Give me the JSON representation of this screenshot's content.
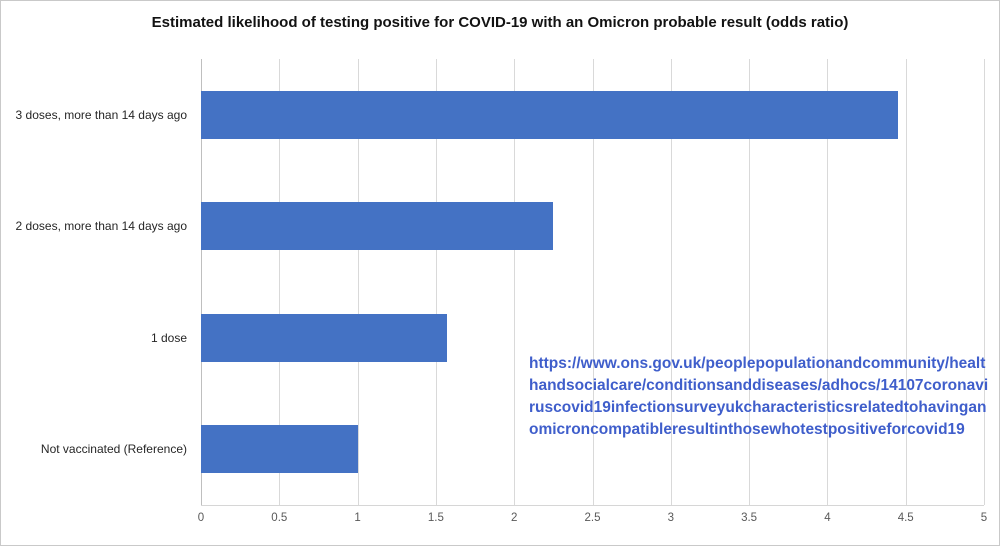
{
  "chart_data": {
    "type": "bar",
    "orientation": "horizontal",
    "title": "Estimated likelihood of testing positive for COVID-19 with an Omicron probable result (odds ratio)",
    "categories": [
      "3 doses, more than 14 days ago",
      "2 doses, more than 14 days ago",
      "1 dose",
      "Not vaccinated (Reference)"
    ],
    "values": [
      4.45,
      2.25,
      1.57,
      1.0
    ],
    "xlabel": "",
    "ylabel": "",
    "xlim": [
      0,
      5
    ],
    "xtick_labels": [
      "0",
      "0.5",
      "1",
      "1.5",
      "2",
      "2.5",
      "3",
      "3.5",
      "4",
      "4.5",
      "5"
    ],
    "grid": "vertical",
    "legend": "none",
    "bar_color": "#4472C4",
    "gridline_color": "#d9d9d9"
  },
  "annotation": {
    "url": "https://www.ons.gov.uk/peoplepopulationandcommunity/healthandsocialcare/conditionsanddiseases/adhocs/14107coronaviruscovid19infectionsurveyukcharacteristicsrelatedtohavinganomicroncompatibleresultinthosewhotestpositiveforcovid19",
    "color": "#3f5ecb"
  }
}
